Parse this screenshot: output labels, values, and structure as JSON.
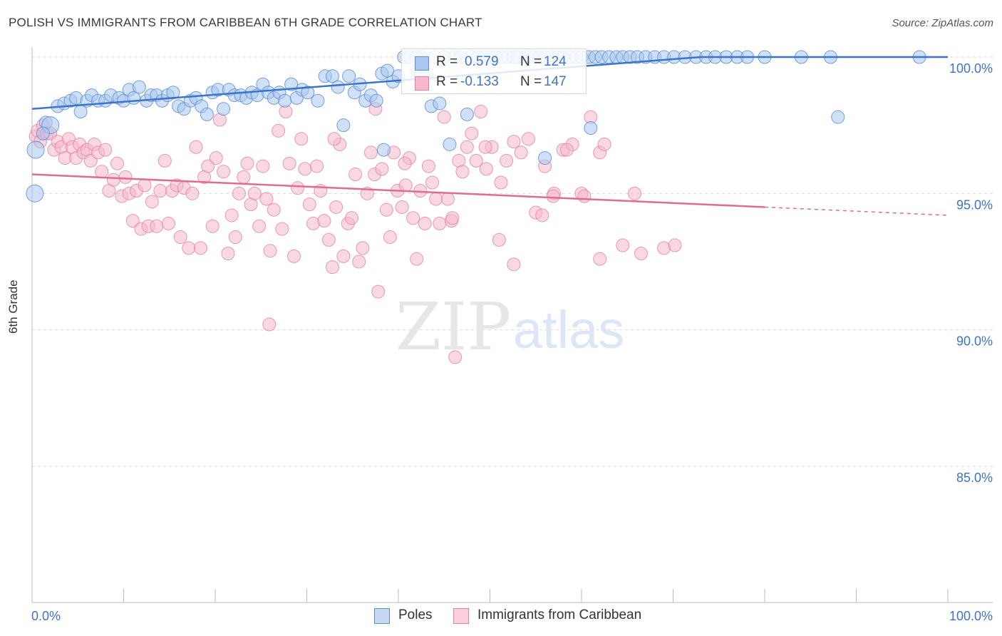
{
  "header": {
    "title": "POLISH VS IMMIGRANTS FROM CARIBBEAN 6TH GRADE CORRELATION CHART",
    "source": "Source: ZipAtlas.com"
  },
  "watermark": {
    "zip": "ZIP",
    "atlas": "atlas"
  },
  "colors": {
    "poles_fill": "#a9c7ef",
    "poles_stroke": "#5b8fd6",
    "poles_line": "#3a74cc",
    "carib_fill": "#f5b8cb",
    "carib_stroke": "#e47fa2",
    "carib_line": "#e06b93",
    "axis_text": "#3d73c4",
    "grid": "#d9d9d9"
  },
  "legend": {
    "rows": [
      {
        "r_label": "R =",
        "r_value": "0.579",
        "n_label": "N =",
        "n_value": "124"
      },
      {
        "r_label": "R =",
        "r_value": "-0.133",
        "n_label": "N =",
        "n_value": "147"
      }
    ]
  },
  "bottom_legend": {
    "series1": "Poles",
    "series2": "Immigrants from Caribbean"
  },
  "chart_data": {
    "type": "scatter",
    "title": "POLISH VS IMMIGRANTS FROM CARIBBEAN 6TH GRADE CORRELATION CHART",
    "xlabel": "",
    "ylabel": "6th Grade",
    "xlim": [
      0,
      100
    ],
    "ylim": [
      80.5,
      100.5
    ],
    "x_tick_labels": [
      "0.0%",
      "100.0%"
    ],
    "y_ticks": [
      85,
      90,
      95,
      100
    ],
    "y_tick_labels": [
      "85.0%",
      "90.0%",
      "95.0%",
      "100.0%"
    ],
    "grid": true,
    "series": [
      {
        "name": "Poles",
        "r": 0.579,
        "n": 124,
        "trend": {
          "x": [
            0,
            73
          ],
          "y": [
            98.1,
            100.0
          ]
        },
        "points": [
          [
            0.3,
            95.0
          ],
          [
            0.4,
            96.6
          ],
          [
            1.5,
            97.6
          ],
          [
            2.0,
            97.5
          ],
          [
            1.2,
            97.2
          ],
          [
            2.8,
            98.2
          ],
          [
            3.5,
            98.3
          ],
          [
            4.2,
            98.4
          ],
          [
            4.8,
            98.5
          ],
          [
            5.3,
            98.0
          ],
          [
            6.0,
            98.4
          ],
          [
            6.5,
            98.6
          ],
          [
            7.2,
            98.4
          ],
          [
            8.0,
            98.4
          ],
          [
            8.6,
            98.6
          ],
          [
            9.5,
            98.5
          ],
          [
            10.0,
            98.4
          ],
          [
            10.6,
            98.8
          ],
          [
            11.1,
            98.5
          ],
          [
            11.7,
            98.9
          ],
          [
            12.5,
            98.4
          ],
          [
            13.0,
            98.6
          ],
          [
            13.6,
            98.6
          ],
          [
            14.2,
            98.4
          ],
          [
            14.8,
            98.6
          ],
          [
            15.4,
            98.7
          ],
          [
            16.0,
            98.2
          ],
          [
            16.6,
            98.1
          ],
          [
            17.3,
            98.4
          ],
          [
            17.9,
            98.5
          ],
          [
            18.5,
            98.2
          ],
          [
            19.1,
            97.9
          ],
          [
            19.7,
            98.7
          ],
          [
            20.3,
            98.8
          ],
          [
            20.9,
            98.1
          ],
          [
            21.5,
            98.8
          ],
          [
            22.1,
            98.6
          ],
          [
            22.8,
            98.6
          ],
          [
            23.4,
            98.5
          ],
          [
            24.0,
            98.7
          ],
          [
            24.6,
            98.6
          ],
          [
            25.2,
            99.0
          ],
          [
            25.8,
            98.7
          ],
          [
            26.4,
            98.5
          ],
          [
            27.0,
            98.7
          ],
          [
            27.6,
            98.4
          ],
          [
            28.3,
            99.0
          ],
          [
            28.9,
            98.5
          ],
          [
            29.5,
            98.8
          ],
          [
            30.1,
            98.7
          ],
          [
            31.2,
            98.4
          ],
          [
            32.0,
            99.3
          ],
          [
            32.8,
            99.3
          ],
          [
            33.4,
            98.9
          ],
          [
            34.0,
            97.5
          ],
          [
            34.6,
            99.3
          ],
          [
            35.2,
            98.7
          ],
          [
            35.8,
            99.0
          ],
          [
            36.4,
            98.4
          ],
          [
            37.0,
            98.6
          ],
          [
            37.6,
            98.4
          ],
          [
            38.2,
            99.4
          ],
          [
            38.8,
            99.5
          ],
          [
            39.4,
            99.1
          ],
          [
            40.0,
            99.3
          ],
          [
            40.6,
            100.0
          ],
          [
            41.2,
            100.0
          ],
          [
            42.0,
            99.5
          ],
          [
            42.5,
            100.0
          ],
          [
            43.0,
            99.3
          ],
          [
            43.6,
            98.2
          ],
          [
            44.0,
            100.0
          ],
          [
            44.5,
            98.3
          ],
          [
            45.0,
            100.0
          ],
          [
            45.6,
            96.8
          ],
          [
            46.2,
            100.0
          ],
          [
            46.8,
            100.0
          ],
          [
            47.5,
            97.9
          ],
          [
            48.0,
            100.0
          ],
          [
            48.7,
            100.0
          ],
          [
            49.3,
            100.0
          ],
          [
            50.0,
            100.0
          ],
          [
            50.6,
            100.0
          ],
          [
            51.3,
            100.0
          ],
          [
            52.0,
            100.0
          ],
          [
            52.6,
            100.0
          ],
          [
            53.3,
            100.0
          ],
          [
            54.0,
            100.0
          ],
          [
            54.7,
            100.0
          ],
          [
            55.4,
            100.0
          ],
          [
            56.0,
            100.0
          ],
          [
            56.7,
            100.0
          ],
          [
            57.4,
            100.0
          ],
          [
            58.0,
            100.0
          ],
          [
            58.7,
            100.0
          ],
          [
            59.4,
            100.0
          ],
          [
            60.0,
            100.0
          ],
          [
            60.8,
            100.0
          ],
          [
            61.5,
            100.0
          ],
          [
            62.2,
            100.0
          ],
          [
            63.0,
            100.0
          ],
          [
            63.8,
            100.0
          ],
          [
            64.5,
            100.0
          ],
          [
            65.3,
            100.0
          ],
          [
            66.1,
            100.0
          ],
          [
            67.0,
            100.0
          ],
          [
            68.0,
            100.0
          ],
          [
            69.0,
            100.0
          ],
          [
            70.1,
            100.0
          ],
          [
            71.3,
            100.0
          ],
          [
            72.5,
            100.0
          ],
          [
            73.6,
            100.0
          ],
          [
            74.6,
            100.0
          ],
          [
            75.8,
            100.0
          ],
          [
            77.0,
            100.0
          ],
          [
            78.1,
            100.0
          ],
          [
            80.0,
            100.0
          ],
          [
            84.0,
            100.0
          ],
          [
            87.2,
            100.0
          ],
          [
            88.0,
            97.8
          ],
          [
            96.9,
            100.0
          ],
          [
            61.0,
            97.4
          ],
          [
            56.0,
            96.3
          ],
          [
            42.0,
            100.0
          ],
          [
            53.0,
            100.0
          ],
          [
            38.4,
            96.6
          ]
        ]
      },
      {
        "name": "Immigrants from Caribbean",
        "r": -0.133,
        "n": 147,
        "trend": {
          "x": [
            0,
            80
          ],
          "y": [
            95.7,
            94.5
          ]
        },
        "trend_dashed": {
          "x": [
            80,
            100
          ],
          "y": [
            94.5,
            94.2
          ]
        },
        "points": [
          [
            0.4,
            97.1
          ],
          [
            0.6,
            97.3
          ],
          [
            0.9,
            96.9
          ],
          [
            1.2,
            97.5
          ],
          [
            1.6,
            97.2
          ],
          [
            2.0,
            97.2
          ],
          [
            2.4,
            96.6
          ],
          [
            2.8,
            96.9
          ],
          [
            3.2,
            96.7
          ],
          [
            3.6,
            96.3
          ],
          [
            4.0,
            97.0
          ],
          [
            4.4,
            96.7
          ],
          [
            4.8,
            96.3
          ],
          [
            5.2,
            96.8
          ],
          [
            5.6,
            96.5
          ],
          [
            6.0,
            96.6
          ],
          [
            6.4,
            96.2
          ],
          [
            6.8,
            96.8
          ],
          [
            7.2,
            96.5
          ],
          [
            7.6,
            95.8
          ],
          [
            8.0,
            96.6
          ],
          [
            8.4,
            95.1
          ],
          [
            8.9,
            95.5
          ],
          [
            9.3,
            96.1
          ],
          [
            9.8,
            94.9
          ],
          [
            10.2,
            95.6
          ],
          [
            10.6,
            95.0
          ],
          [
            11.0,
            94.0
          ],
          [
            11.4,
            95.1
          ],
          [
            11.9,
            93.7
          ],
          [
            12.3,
            95.3
          ],
          [
            12.7,
            93.8
          ],
          [
            13.1,
            94.7
          ],
          [
            13.6,
            93.8
          ],
          [
            14.0,
            95.1
          ],
          [
            14.5,
            96.2
          ],
          [
            14.9,
            93.9
          ],
          [
            15.3,
            95.1
          ],
          [
            15.8,
            95.3
          ],
          [
            16.2,
            93.4
          ],
          [
            16.6,
            95.2
          ],
          [
            17.1,
            93.0
          ],
          [
            17.5,
            95.0
          ],
          [
            17.9,
            96.7
          ],
          [
            18.4,
            93.0
          ],
          [
            18.8,
            95.6
          ],
          [
            19.2,
            96.0
          ],
          [
            19.7,
            93.8
          ],
          [
            20.1,
            96.3
          ],
          [
            20.5,
            97.7
          ],
          [
            20.9,
            95.8
          ],
          [
            21.4,
            92.8
          ],
          [
            21.8,
            94.2
          ],
          [
            22.2,
            93.4
          ],
          [
            22.6,
            95.0
          ],
          [
            23.1,
            95.6
          ],
          [
            23.5,
            96.1
          ],
          [
            23.9,
            94.6
          ],
          [
            24.3,
            95.0
          ],
          [
            24.8,
            93.8
          ],
          [
            25.2,
            96.0
          ],
          [
            25.6,
            94.8
          ],
          [
            26.0,
            92.9
          ],
          [
            26.4,
            94.4
          ],
          [
            26.9,
            97.3
          ],
          [
            27.3,
            93.7
          ],
          [
            27.7,
            98.0
          ],
          [
            28.1,
            96.1
          ],
          [
            28.6,
            92.7
          ],
          [
            29.0,
            95.2
          ],
          [
            29.4,
            97.0
          ],
          [
            29.8,
            95.9
          ],
          [
            30.3,
            94.6
          ],
          [
            30.7,
            93.9
          ],
          [
            31.1,
            96.0
          ],
          [
            31.5,
            95.1
          ],
          [
            31.9,
            94.0
          ],
          [
            32.4,
            93.3
          ],
          [
            32.8,
            92.3
          ],
          [
            33.2,
            94.5
          ],
          [
            33.6,
            96.8
          ],
          [
            34.0,
            92.7
          ],
          [
            34.5,
            93.9
          ],
          [
            34.9,
            94.1
          ],
          [
            35.3,
            95.7
          ],
          [
            35.7,
            92.5
          ],
          [
            36.1,
            93.0
          ],
          [
            36.6,
            95.0
          ],
          [
            37.0,
            96.5
          ],
          [
            37.4,
            95.7
          ],
          [
            37.8,
            91.4
          ],
          [
            38.2,
            95.9
          ],
          [
            38.7,
            94.4
          ],
          [
            39.1,
            93.4
          ],
          [
            39.5,
            96.5
          ],
          [
            39.9,
            95.1
          ],
          [
            40.4,
            94.5
          ],
          [
            40.8,
            95.3
          ],
          [
            41.2,
            96.3
          ],
          [
            41.6,
            94.1
          ],
          [
            42.0,
            92.6
          ],
          [
            42.4,
            95.1
          ],
          [
            42.9,
            93.9
          ],
          [
            43.3,
            96.0
          ],
          [
            43.7,
            95.4
          ],
          [
            44.1,
            94.8
          ],
          [
            44.5,
            93.9
          ],
          [
            45.0,
            97.8
          ],
          [
            45.4,
            94.8
          ],
          [
            45.8,
            94.0
          ],
          [
            46.2,
            89.0
          ],
          [
            46.6,
            96.2
          ],
          [
            47.0,
            95.8
          ],
          [
            47.5,
            96.7
          ],
          [
            48.0,
            97.2
          ],
          [
            48.5,
            96.2
          ],
          [
            49.0,
            98.0
          ],
          [
            49.6,
            95.9
          ],
          [
            50.2,
            96.7
          ],
          [
            51.0,
            93.3
          ],
          [
            51.8,
            96.2
          ],
          [
            52.6,
            92.4
          ],
          [
            53.4,
            96.5
          ],
          [
            54.2,
            97.0
          ],
          [
            55.0,
            94.3
          ],
          [
            56.0,
            96.0
          ],
          [
            57.0,
            95.0
          ],
          [
            58.0,
            96.6
          ],
          [
            59.0,
            96.8
          ],
          [
            60.0,
            95.0
          ],
          [
            61.0,
            97.8
          ],
          [
            62.0,
            96.5
          ],
          [
            25.9,
            90.2
          ],
          [
            37.5,
            98.1
          ],
          [
            40.7,
            96.1
          ],
          [
            45.9,
            94.1
          ],
          [
            49.5,
            96.7
          ],
          [
            51.2,
            95.4
          ],
          [
            52.6,
            96.9
          ],
          [
            55.7,
            94.2
          ],
          [
            56.9,
            94.9
          ],
          [
            58.4,
            96.6
          ],
          [
            60.3,
            94.9
          ],
          [
            62.5,
            96.8
          ],
          [
            62.0,
            92.6
          ],
          [
            64.5,
            93.1
          ],
          [
            65.8,
            95.0
          ],
          [
            66.5,
            92.8
          ],
          [
            69.0,
            93.0
          ],
          [
            70.2,
            93.1
          ],
          [
            33.0,
            97.0
          ]
        ]
      }
    ]
  }
}
